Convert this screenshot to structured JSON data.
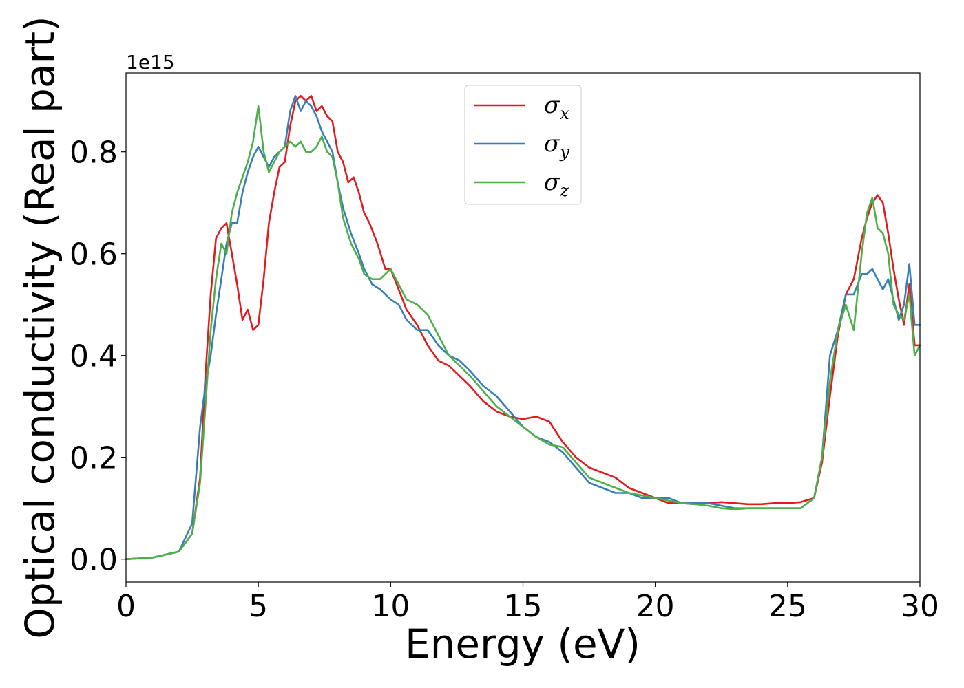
{
  "chart_data": {
    "type": "line",
    "xlabel": "Energy (eV)",
    "ylabel": "Optical conductivity (Real part)",
    "y_offset_text": "1e15",
    "xlim": [
      0,
      30
    ],
    "ylim": [
      -0.045,
      0.955
    ],
    "x_ticks": [
      0,
      5,
      10,
      15,
      20,
      25,
      30
    ],
    "x_tick_labels": [
      "0",
      "5",
      "10",
      "15",
      "20",
      "25",
      "30"
    ],
    "y_ticks": [
      0.0,
      0.2,
      0.4,
      0.6,
      0.8
    ],
    "y_tick_labels": [
      "0.0",
      "0.2",
      "0.4",
      "0.6",
      "0.8"
    ],
    "grid": false,
    "legend_position": "upper-center",
    "series": [
      {
        "name": "σx",
        "symbol": "σ",
        "subscript": "x",
        "color": "#e41a1c",
        "x": [
          0,
          1,
          2,
          2.5,
          2.8,
          3.0,
          3.2,
          3.4,
          3.6,
          3.8,
          4.0,
          4.2,
          4.4,
          4.6,
          4.8,
          5.0,
          5.2,
          5.4,
          5.6,
          5.8,
          6.0,
          6.2,
          6.4,
          6.6,
          6.8,
          7.0,
          7.2,
          7.4,
          7.6,
          7.8,
          8.0,
          8.2,
          8.4,
          8.6,
          8.8,
          9.0,
          9.2,
          9.5,
          9.8,
          10.0,
          10.3,
          10.6,
          11.0,
          11.4,
          11.8,
          12.2,
          12.6,
          13.0,
          13.5,
          14.0,
          14.5,
          15.0,
          15.5,
          16.0,
          16.5,
          17.0,
          17.5,
          18.0,
          18.5,
          19.0,
          19.5,
          20.0,
          20.5,
          21.0,
          21.5,
          22.0,
          22.5,
          23.0,
          23.5,
          24.0,
          24.5,
          25.0,
          25.5,
          26.0,
          26.3,
          26.6,
          26.9,
          27.2,
          27.5,
          27.8,
          28.0,
          28.2,
          28.4,
          28.6,
          28.8,
          29.0,
          29.2,
          29.4,
          29.6,
          29.8,
          30.0
        ],
        "y": [
          0.0,
          0.003,
          0.015,
          0.05,
          0.16,
          0.36,
          0.52,
          0.63,
          0.65,
          0.66,
          0.6,
          0.54,
          0.47,
          0.49,
          0.45,
          0.46,
          0.55,
          0.66,
          0.72,
          0.77,
          0.78,
          0.85,
          0.9,
          0.91,
          0.9,
          0.91,
          0.88,
          0.89,
          0.87,
          0.86,
          0.8,
          0.78,
          0.74,
          0.75,
          0.72,
          0.68,
          0.66,
          0.62,
          0.57,
          0.57,
          0.53,
          0.49,
          0.46,
          0.42,
          0.39,
          0.38,
          0.36,
          0.34,
          0.31,
          0.29,
          0.28,
          0.275,
          0.28,
          0.27,
          0.23,
          0.2,
          0.18,
          0.17,
          0.16,
          0.14,
          0.13,
          0.12,
          0.11,
          0.11,
          0.108,
          0.11,
          0.112,
          0.11,
          0.108,
          0.108,
          0.11,
          0.11,
          0.112,
          0.12,
          0.19,
          0.32,
          0.44,
          0.52,
          0.55,
          0.63,
          0.67,
          0.7,
          0.715,
          0.7,
          0.64,
          0.57,
          0.51,
          0.46,
          0.54,
          0.42,
          0.42
        ]
      },
      {
        "name": "σy",
        "symbol": "σ",
        "subscript": "y",
        "color": "#377eb8",
        "x": [
          0,
          1,
          2,
          2.5,
          2.8,
          3.0,
          3.2,
          3.4,
          3.6,
          3.8,
          4.0,
          4.2,
          4.4,
          4.6,
          4.8,
          5.0,
          5.2,
          5.4,
          5.6,
          5.8,
          6.0,
          6.2,
          6.4,
          6.6,
          6.8,
          7.0,
          7.2,
          7.4,
          7.6,
          7.8,
          8.0,
          8.2,
          8.5,
          8.8,
          9.0,
          9.3,
          9.6,
          10.0,
          10.3,
          10.6,
          11.0,
          11.4,
          11.8,
          12.2,
          12.6,
          13.0,
          13.5,
          14.0,
          14.5,
          15.0,
          15.5,
          16.0,
          16.5,
          17.0,
          17.5,
          18.0,
          18.5,
          19.0,
          19.5,
          20.0,
          20.5,
          21.0,
          21.5,
          22.0,
          22.5,
          23.0,
          23.5,
          24.0,
          24.5,
          25.0,
          25.5,
          26.0,
          26.3,
          26.6,
          26.9,
          27.2,
          27.5,
          27.8,
          28.0,
          28.2,
          28.4,
          28.6,
          28.8,
          29.0,
          29.2,
          29.4,
          29.6,
          29.8,
          30.0
        ],
        "y": [
          0.0,
          0.003,
          0.015,
          0.07,
          0.26,
          0.34,
          0.4,
          0.48,
          0.55,
          0.62,
          0.66,
          0.66,
          0.72,
          0.76,
          0.79,
          0.81,
          0.79,
          0.77,
          0.79,
          0.8,
          0.81,
          0.88,
          0.91,
          0.88,
          0.9,
          0.89,
          0.87,
          0.84,
          0.82,
          0.8,
          0.74,
          0.69,
          0.64,
          0.6,
          0.57,
          0.54,
          0.53,
          0.51,
          0.5,
          0.47,
          0.45,
          0.45,
          0.42,
          0.4,
          0.39,
          0.37,
          0.34,
          0.32,
          0.29,
          0.26,
          0.24,
          0.23,
          0.21,
          0.18,
          0.15,
          0.14,
          0.13,
          0.13,
          0.12,
          0.12,
          0.12,
          0.11,
          0.11,
          0.11,
          0.105,
          0.1,
          0.1,
          0.1,
          0.1,
          0.1,
          0.1,
          0.12,
          0.2,
          0.4,
          0.45,
          0.52,
          0.52,
          0.56,
          0.56,
          0.57,
          0.55,
          0.53,
          0.55,
          0.51,
          0.47,
          0.5,
          0.58,
          0.46,
          0.46
        ]
      },
      {
        "name": "σz",
        "symbol": "σ",
        "subscript": "z",
        "color": "#4daf4a",
        "x": [
          0,
          1,
          2,
          2.5,
          2.8,
          3.0,
          3.2,
          3.4,
          3.6,
          3.8,
          4.0,
          4.2,
          4.4,
          4.6,
          4.8,
          5.0,
          5.2,
          5.4,
          5.6,
          5.8,
          6.0,
          6.2,
          6.4,
          6.6,
          6.8,
          7.0,
          7.2,
          7.4,
          7.6,
          7.8,
          8.0,
          8.2,
          8.5,
          8.8,
          9.0,
          9.3,
          9.6,
          10.0,
          10.3,
          10.6,
          11.0,
          11.4,
          11.8,
          12.2,
          12.6,
          13.0,
          13.5,
          14.0,
          14.5,
          15.0,
          15.5,
          16.0,
          16.5,
          17.0,
          17.5,
          18.0,
          18.5,
          19.0,
          19.5,
          20.0,
          20.5,
          21.0,
          21.5,
          22.0,
          22.5,
          23.0,
          23.5,
          24.0,
          24.5,
          25.0,
          25.5,
          26.0,
          26.3,
          26.6,
          26.9,
          27.2,
          27.5,
          27.8,
          28.0,
          28.2,
          28.4,
          28.6,
          28.8,
          29.0,
          29.2,
          29.4,
          29.6,
          29.8,
          30.0
        ],
        "y": [
          0.0,
          0.003,
          0.015,
          0.05,
          0.15,
          0.3,
          0.45,
          0.55,
          0.62,
          0.6,
          0.68,
          0.72,
          0.75,
          0.78,
          0.82,
          0.89,
          0.8,
          0.76,
          0.78,
          0.8,
          0.81,
          0.82,
          0.81,
          0.82,
          0.8,
          0.8,
          0.81,
          0.83,
          0.8,
          0.79,
          0.74,
          0.67,
          0.62,
          0.59,
          0.56,
          0.55,
          0.55,
          0.57,
          0.54,
          0.51,
          0.5,
          0.48,
          0.44,
          0.4,
          0.38,
          0.36,
          0.33,
          0.3,
          0.28,
          0.26,
          0.24,
          0.225,
          0.22,
          0.19,
          0.16,
          0.15,
          0.14,
          0.13,
          0.125,
          0.12,
          0.115,
          0.11,
          0.108,
          0.105,
          0.1,
          0.098,
          0.1,
          0.1,
          0.1,
          0.1,
          0.1,
          0.12,
          0.2,
          0.35,
          0.45,
          0.5,
          0.45,
          0.6,
          0.68,
          0.71,
          0.65,
          0.64,
          0.6,
          0.5,
          0.48,
          0.47,
          0.52,
          0.4,
          0.42
        ]
      }
    ]
  }
}
